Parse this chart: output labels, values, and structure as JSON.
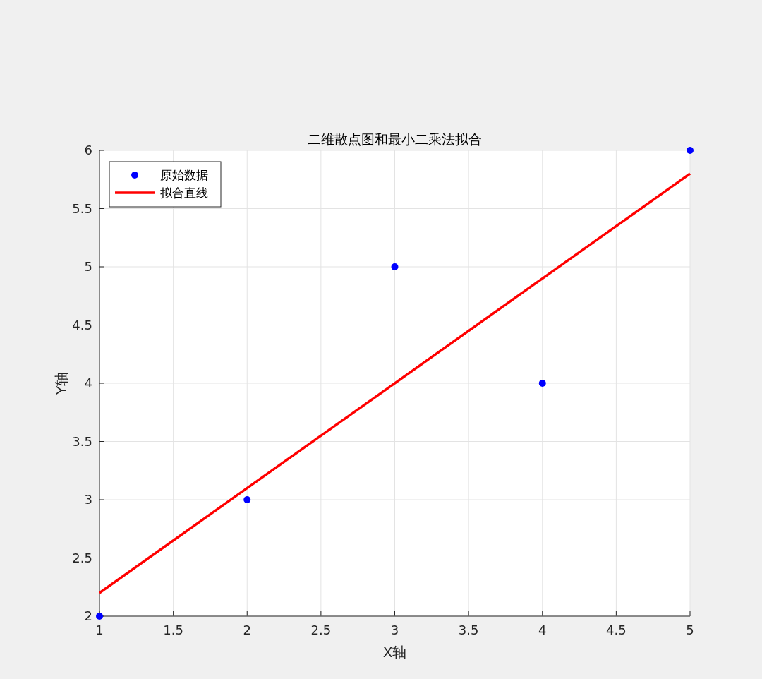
{
  "chart_data": {
    "type": "scatter",
    "title": "二维散点图和最小二乘法拟合",
    "xlabel": "X轴",
    "ylabel": "Y轴",
    "xlim": [
      1,
      5
    ],
    "ylim": [
      2,
      6
    ],
    "xticks": [
      1,
      1.5,
      2,
      2.5,
      3,
      3.5,
      4,
      4.5,
      5
    ],
    "yticks": [
      2,
      2.5,
      3,
      3.5,
      4,
      4.5,
      5,
      5.5,
      6
    ],
    "grid": true,
    "legend": "top left",
    "series": [
      {
        "name": "原始数据",
        "color": "#0000ff",
        "marker": "circle",
        "x": [
          1,
          2,
          3,
          4,
          5
        ],
        "values": [
          2,
          3,
          5,
          4,
          6
        ]
      },
      {
        "name": "拟合直线",
        "type": "line",
        "color": "#ff0000",
        "marker": "none",
        "line_style": "solid",
        "x": [
          1,
          5
        ],
        "values": [
          2.2,
          5.8
        ]
      }
    ]
  }
}
